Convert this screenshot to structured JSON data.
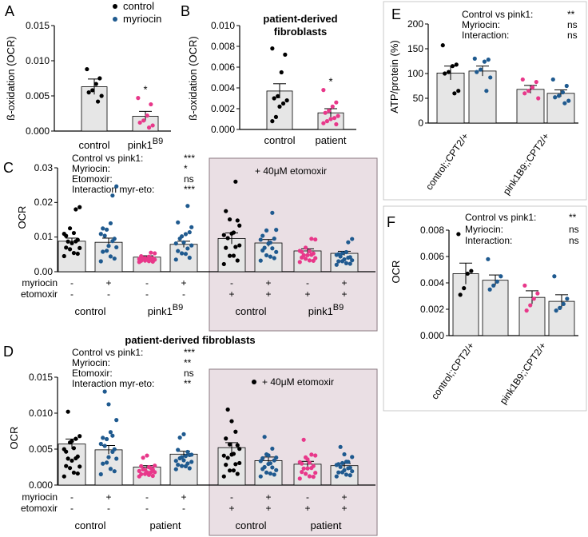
{
  "figure": {
    "colors": {
      "control": "#000000",
      "myriocin": "#1f5a8f",
      "pink1": "#e8388a",
      "bar_fill": "#e6e6e6",
      "etomoxir_box": "#eadfe4",
      "etomoxir_box_border": "#8a7a80"
    }
  },
  "chart_data": [
    {
      "id": "A",
      "type": "bar",
      "panel_label": "A",
      "ylabel": "ß-oxidation (OCR)",
      "yticks": [
        "0.000",
        "0.005",
        "0.010",
        "0.015"
      ],
      "ylim": [
        0,
        0.015
      ],
      "legend": [
        "control",
        "myriocin"
      ],
      "categories": [
        "control",
        "pink1"
      ],
      "category_superscripts": [
        "",
        "B9"
      ],
      "values": [
        0.0063,
        0.0021
      ],
      "errors": [
        0.0011,
        0.0007
      ],
      "significance": [
        "",
        "*"
      ],
      "points": [
        [
          0.0088,
          0.0075,
          0.0067,
          0.0058,
          0.0055,
          0.005,
          0.0042
        ],
        [
          0.0047,
          0.0038,
          0.0022,
          0.0015,
          0.0012,
          0.0008,
          0.0005
        ]
      ]
    },
    {
      "id": "B",
      "type": "bar",
      "panel_label": "B",
      "title": "patient-derived fibroblasts",
      "ylabel": "ß-oxidation (OCR)",
      "yticks": [
        "0.000",
        "0.002",
        "0.004",
        "0.006",
        "0.008",
        "0.010"
      ],
      "ylim": [
        0,
        0.01
      ],
      "categories": [
        "control",
        "patient"
      ],
      "values": [
        0.0037,
        0.0016
      ],
      "errors": [
        0.0007,
        0.0004
      ],
      "significance": [
        "",
        "*"
      ],
      "points": [
        [
          0.0078,
          0.0072,
          0.0055,
          0.0032,
          0.003,
          0.0028,
          0.0025,
          0.0022,
          0.0012,
          0.0008
        ],
        [
          0.0038,
          0.0026,
          0.0022,
          0.0018,
          0.0016,
          0.0013,
          0.0011,
          0.001,
          0.0008,
          0.0006,
          0.0005
        ]
      ]
    },
    {
      "id": "C",
      "type": "bar",
      "panel_label": "C",
      "ylabel": "OCR",
      "yticks": [
        "0.00",
        "0.01",
        "0.02",
        "0.03"
      ],
      "ylim": [
        0,
        0.03
      ],
      "stats": [
        {
          "label": "Control vs pink1:",
          "value": "***"
        },
        {
          "label": "Myriocin:",
          "value": "*"
        },
        {
          "label": "Etomoxir:",
          "value": "ns"
        },
        {
          "label": "Interaction myr-eto:",
          "value": "***"
        }
      ],
      "etomoxir_label": "+ 40μM etomoxir",
      "row_labels": [
        "myriocin",
        "etomoxir"
      ],
      "myriocin_signs": [
        "-",
        "+",
        "-",
        "+",
        "-",
        "+",
        "-",
        "+"
      ],
      "etomoxir_signs": [
        "-",
        "-",
        "-",
        "-",
        "+",
        "+",
        "+",
        "+"
      ],
      "groups": [
        {
          "label": "control",
          "superscript": ""
        },
        {
          "label": "pink1",
          "superscript": "B9"
        },
        {
          "label": "control",
          "superscript": ""
        },
        {
          "label": "pink1",
          "superscript": "B9"
        }
      ],
      "values": [
        0.0088,
        0.0085,
        0.0042,
        0.0079,
        0.0096,
        0.0083,
        0.006,
        0.0053
      ],
      "errors": [
        0.0009,
        0.0012,
        0.0004,
        0.0009,
        0.0016,
        0.001,
        0.0006,
        0.0006
      ],
      "point_colors": [
        "control",
        "myriocin",
        "pink1",
        "myriocin",
        "control",
        "myriocin",
        "pink1",
        "myriocin"
      ],
      "point_counts": [
        16,
        16,
        16,
        16,
        16,
        16,
        16,
        16
      ],
      "point_max": [
        0.018,
        0.022,
        0.0055,
        0.019,
        0.026,
        0.017,
        0.0095,
        0.0085
      ],
      "point_min": [
        0.0045,
        0.003,
        0.0028,
        0.0035,
        0.0022,
        0.0032,
        0.0028,
        0.002
      ]
    },
    {
      "id": "D",
      "type": "bar",
      "panel_label": "D",
      "title": "patient-derived fibroblasts",
      "ylabel": "OCR",
      "yticks": [
        "0.000",
        "0.005",
        "0.010",
        "0.015"
      ],
      "ylim": [
        0,
        0.015
      ],
      "stats": [
        {
          "label": "Control vs pink1:",
          "value": "***"
        },
        {
          "label": "Myriocin:",
          "value": "**"
        },
        {
          "label": "Etomoxir:",
          "value": "ns"
        },
        {
          "label": "Interaction myr-eto:",
          "value": "**"
        }
      ],
      "etomoxir_label": "+ 40μM etomoxir",
      "row_labels": [
        "myriocin",
        "etomoxir"
      ],
      "myriocin_signs": [
        "-",
        "+",
        "-",
        "+",
        "-",
        "+",
        "-",
        "+"
      ],
      "etomoxir_signs": [
        "-",
        "-",
        "-",
        "-",
        "+",
        "+",
        "+",
        "+"
      ],
      "groups": [
        {
          "label": "control",
          "superscript": ""
        },
        {
          "label": "patient",
          "superscript": ""
        },
        {
          "label": "control",
          "superscript": ""
        },
        {
          "label": "patient",
          "superscript": ""
        }
      ],
      "values": [
        0.0057,
        0.0049,
        0.0025,
        0.0043,
        0.0052,
        0.0034,
        0.0029,
        0.0027
      ],
      "errors": [
        0.0007,
        0.0006,
        0.0002,
        0.0004,
        0.0007,
        0.0005,
        0.0004,
        0.0003
      ],
      "point_colors": [
        "control",
        "myriocin",
        "pink1",
        "myriocin",
        "control",
        "myriocin",
        "pink1",
        "myriocin"
      ],
      "point_counts": [
        18,
        18,
        18,
        18,
        18,
        18,
        18,
        18
      ],
      "point_max": [
        0.0102,
        0.013,
        0.0038,
        0.0066,
        0.0105,
        0.0067,
        0.0063,
        0.0053
      ],
      "point_min": [
        0.0012,
        0.0015,
        0.0012,
        0.0022,
        0.0012,
        0.0012,
        0.0009,
        0.0012
      ]
    },
    {
      "id": "E",
      "type": "bar",
      "panel_label": "E",
      "ylabel": "ATP/protein (%)",
      "yticks": [
        "0",
        "50",
        "100",
        "150",
        "200"
      ],
      "ylim": [
        0,
        200
      ],
      "stats": [
        {
          "label": "Control vs pink1:",
          "value": "**"
        },
        {
          "label": "Myriocin:",
          "value": "ns"
        },
        {
          "label": "Interaction:",
          "value": "ns"
        }
      ],
      "groups": [
        "control;;CPT2/+",
        "pink1B9;;CPT2/+"
      ],
      "values": [
        101,
        105,
        68,
        60
      ],
      "errors": [
        14,
        10,
        8,
        7
      ],
      "point_colors": [
        "control",
        "myriocin",
        "pink1",
        "myriocin"
      ],
      "points": [
        [
          157,
          118,
          115,
          103,
          100,
          65,
          60
        ],
        [
          130,
          128,
          124,
          108,
          103,
          92,
          65
        ],
        [
          88,
          83,
          72,
          65,
          60,
          50
        ],
        [
          88,
          75,
          62,
          55,
          52,
          45,
          40
        ]
      ]
    },
    {
      "id": "F",
      "type": "bar",
      "panel_label": "F",
      "ylabel": "OCR",
      "yticks": [
        "0.000",
        "0.002",
        "0.004",
        "0.006",
        "0.008"
      ],
      "ylim": [
        0,
        0.008
      ],
      "stats": [
        {
          "label": "Control vs pink1:",
          "value": "**"
        },
        {
          "label": "Myriocin:",
          "value": "ns"
        },
        {
          "label": "Interaction:",
          "value": "ns"
        }
      ],
      "groups": [
        "control;;CPT2/+",
        "pink1B9;;CPT2/+"
      ],
      "values": [
        0.0047,
        0.0042,
        0.0029,
        0.0026
      ],
      "errors": [
        0.0008,
        0.0004,
        0.0005,
        0.0005
      ],
      "point_colors": [
        "control",
        "myriocin",
        "pink1",
        "myriocin"
      ],
      "points": [
        [
          0.0077,
          0.0049,
          0.0047,
          0.0036,
          0.0031
        ],
        [
          0.0058,
          0.0045,
          0.0041,
          0.0038,
          0.0035
        ],
        [
          0.0038,
          0.0032,
          0.0028,
          0.0023,
          0.0019
        ],
        [
          0.0045,
          0.0028,
          0.0024,
          0.0021,
          0.0019
        ]
      ]
    }
  ]
}
